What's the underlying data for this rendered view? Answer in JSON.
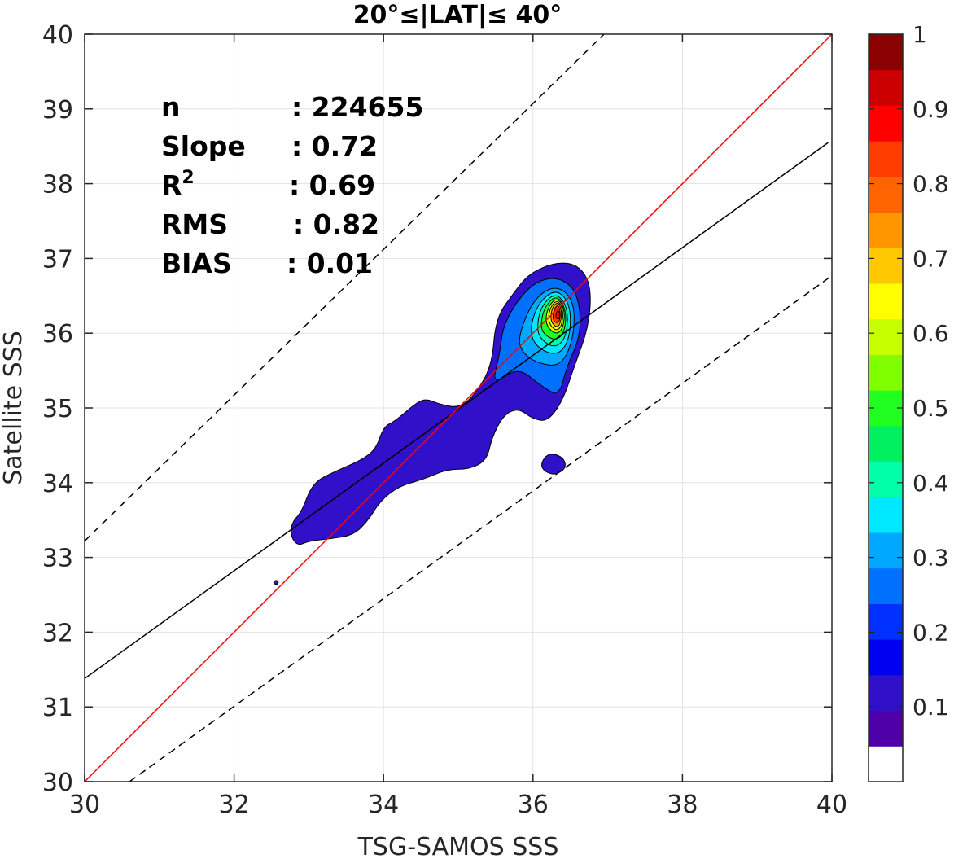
{
  "chart_data": {
    "type": "contour",
    "title": "20°≤|LAT|≤ 40°",
    "xlabel": "TSG-SAMOS SSS",
    "ylabel": "Satellite SSS",
    "xlim": [
      30,
      40
    ],
    "ylim": [
      30,
      40
    ],
    "xticks": [
      "30",
      "32",
      "34",
      "36",
      "38",
      "40"
    ],
    "yticks": [
      "30",
      "31",
      "32",
      "33",
      "34",
      "35",
      "36",
      "37",
      "38",
      "39",
      "40"
    ],
    "grid": true,
    "stats": [
      {
        "label": "n",
        "value": ": 224655"
      },
      {
        "label": "Slope",
        "value": ": 0.72"
      },
      {
        "label": "R",
        "sup": "2",
        "value": ": 0.69"
      },
      {
        "label": "RMS",
        "value": ": 0.82"
      },
      {
        "label": "BIAS",
        "value": ": 0.01"
      }
    ],
    "lines": {
      "one_to_one": {
        "color": "#ff0000",
        "points": [
          [
            30,
            30
          ],
          [
            40,
            40
          ]
        ]
      },
      "regression": {
        "color": "#000000",
        "slope": 0.72,
        "points": [
          [
            30,
            31.38
          ],
          [
            39.95,
            38.55
          ]
        ]
      },
      "upper_bound": {
        "color": "#000000",
        "dash": true,
        "points": [
          [
            30,
            33.22
          ],
          [
            36.95,
            40.0
          ]
        ]
      },
      "lower_bound": {
        "color": "#000000",
        "dash": true,
        "points": [
          [
            30.6,
            30.0
          ],
          [
            40.0,
            36.77
          ]
        ]
      }
    },
    "density_peak": {
      "x": 36.33,
      "y": 36.25
    },
    "contour_levels": [
      0.05,
      0.1,
      0.15,
      0.2,
      0.25,
      0.3,
      0.35,
      0.4,
      0.45,
      0.5,
      0.55,
      0.6,
      0.65,
      0.7,
      0.75,
      0.8,
      0.85,
      0.9,
      0.95
    ],
    "colorbar": {
      "range": [
        0,
        1
      ],
      "ticks": [
        "0.1",
        "0.2",
        "0.3",
        "0.4",
        "0.5",
        "0.6",
        "0.7",
        "0.8",
        "0.9",
        "1"
      ],
      "colors": [
        "#ffffff",
        "#5000a8",
        "#3010c8",
        "#0000f0",
        "#0030ff",
        "#0070ff",
        "#00a8ff",
        "#00e8ff",
        "#00ffa8",
        "#00f060",
        "#20ff20",
        "#80ff00",
        "#c8ff00",
        "#ffff00",
        "#ffc800",
        "#ff9600",
        "#ff6400",
        "#ff3c00",
        "#ff0000",
        "#cc0000",
        "#8b0000"
      ]
    }
  }
}
